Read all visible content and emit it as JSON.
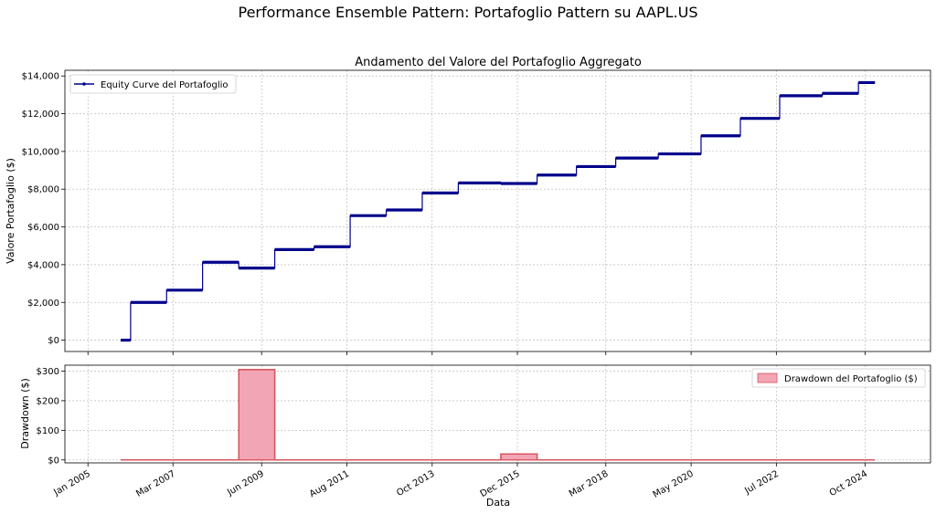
{
  "suptitle": "Performance Ensemble Pattern: Portafoglio Pattern su AAPL.US",
  "colors": {
    "equity": "#00008b",
    "drawdown_fill": "#f2a5b4",
    "drawdown_line": "#d9545e"
  },
  "chart_data": [
    {
      "type": "line",
      "title": "Andamento del Valore del Portafoglio Aggregato",
      "ylabel": "Valore Portafoglio ($)",
      "xlabel": "",
      "ylim": [
        -600,
        14300
      ],
      "yticks": [
        0,
        2000,
        4000,
        6000,
        8000,
        10000,
        12000,
        14000
      ],
      "ytick_labels": [
        "$0",
        "$2,000",
        "$4,000",
        "$6,000",
        "$8,000",
        "$10,000",
        "$12,000",
        "$14,000"
      ],
      "grid": true,
      "legend": "top-left",
      "series": [
        {
          "name": "Equity Curve del Portafoglio",
          "steps": [
            {
              "x0": "2005-11-01",
              "x1": "2006-02-01",
              "y": 0
            },
            {
              "x0": "2006-02-01",
              "x1": "2007-01-01",
              "y": 2000
            },
            {
              "x0": "2007-01-01",
              "x1": "2007-12-01",
              "y": 2650
            },
            {
              "x0": "2007-12-01",
              "x1": "2008-11-01",
              "y": 4130
            },
            {
              "x0": "2008-11-01",
              "x1": "2009-10-01",
              "y": 3820
            },
            {
              "x0": "2009-10-01",
              "x1": "2010-10-01",
              "y": 4800
            },
            {
              "x0": "2010-10-01",
              "x1": "2011-09-01",
              "y": 4950
            },
            {
              "x0": "2011-09-01",
              "x1": "2012-08-01",
              "y": 6600
            },
            {
              "x0": "2012-08-01",
              "x1": "2013-07-01",
              "y": 6900
            },
            {
              "x0": "2013-07-01",
              "x1": "2014-06-01",
              "y": 7800
            },
            {
              "x0": "2014-06-01",
              "x1": "2015-07-01",
              "y": 8330
            },
            {
              "x0": "2015-07-01",
              "x1": "2016-06-01",
              "y": 8300
            },
            {
              "x0": "2016-06-01",
              "x1": "2017-06-01",
              "y": 8750
            },
            {
              "x0": "2017-06-01",
              "x1": "2018-06-01",
              "y": 9200
            },
            {
              "x0": "2018-06-01",
              "x1": "2019-07-01",
              "y": 9650
            },
            {
              "x0": "2019-07-01",
              "x1": "2020-08-01",
              "y": 9870
            },
            {
              "x0": "2020-08-01",
              "x1": "2021-08-01",
              "y": 10830
            },
            {
              "x0": "2021-08-01",
              "x1": "2022-08-01",
              "y": 11750
            },
            {
              "x0": "2022-08-01",
              "x1": "2023-09-01",
              "y": 12950
            },
            {
              "x0": "2023-09-01",
              "x1": "2024-08-01",
              "y": 13080
            },
            {
              "x0": "2024-08-01",
              "x1": "2025-01-01",
              "y": 13650
            }
          ]
        }
      ]
    },
    {
      "type": "area",
      "title": "",
      "ylabel": "Drawdown ($)",
      "xlabel": "Data",
      "ylim": [
        -10,
        320
      ],
      "yticks": [
        0,
        100,
        200,
        300
      ],
      "ytick_labels": [
        "$0",
        "$100",
        "$200",
        "$300"
      ],
      "grid": true,
      "legend": "top-right",
      "series": [
        {
          "name": "Drawdown del Portafoglio ($)",
          "steps": [
            {
              "x0": "2005-11-01",
              "x1": "2008-11-01",
              "y": 0
            },
            {
              "x0": "2008-11-01",
              "x1": "2009-10-01",
              "y": 305
            },
            {
              "x0": "2009-10-01",
              "x1": "2015-07-01",
              "y": 0
            },
            {
              "x0": "2015-07-01",
              "x1": "2016-06-01",
              "y": 20
            },
            {
              "x0": "2016-06-01",
              "x1": "2025-01-01",
              "y": 0
            }
          ]
        }
      ]
    }
  ],
  "x_axis": {
    "xlim": [
      "2004-06-01",
      "2026-06-01"
    ],
    "ticks": [
      "2005-01-01",
      "2007-03-01",
      "2009-06-01",
      "2011-08-01",
      "2013-10-01",
      "2015-12-01",
      "2018-03-01",
      "2020-05-01",
      "2022-07-01",
      "2024-10-01"
    ],
    "tick_labels": [
      "Jan 2005",
      "Mar 2007",
      "Jun 2009",
      "Aug 2011",
      "Oct 2013",
      "Dec 2015",
      "Mar 2018",
      "May 2020",
      "Jul 2022",
      "Oct 2024"
    ]
  }
}
